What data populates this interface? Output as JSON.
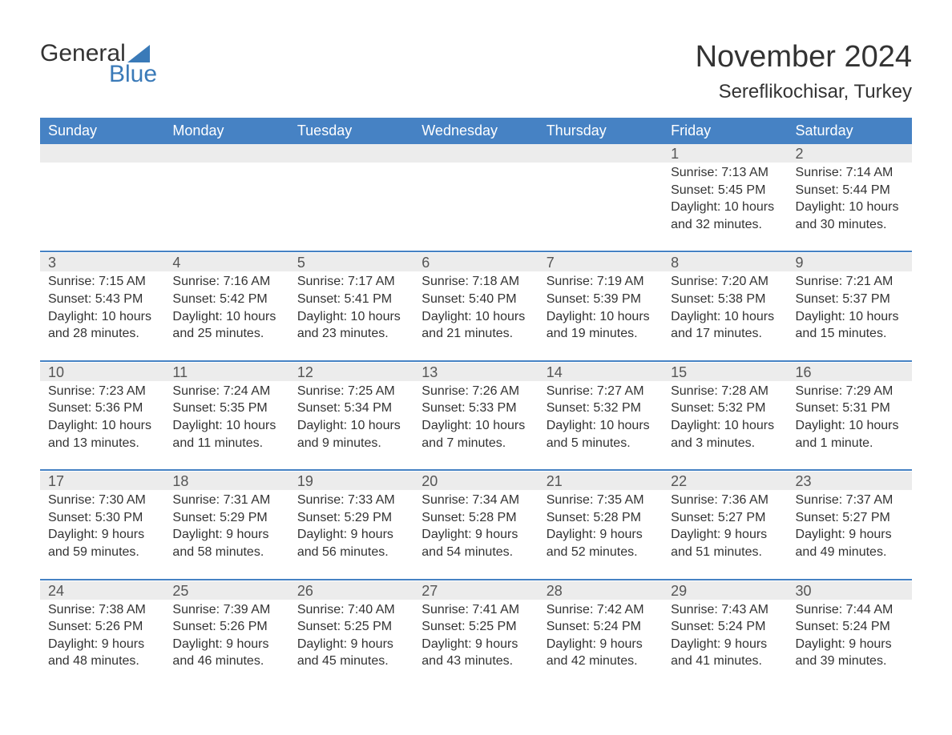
{
  "logo": {
    "word1": "General",
    "word2": "Blue",
    "accent_color": "#3a7ab8"
  },
  "title": "November 2024",
  "location": "Sereflikochisar, Turkey",
  "colors": {
    "header_bg": "#4682c4",
    "header_text": "#ffffff",
    "daynum_bg": "#ececec",
    "week_border": "#4682c4",
    "text": "#333333"
  },
  "day_headers": [
    "Sunday",
    "Monday",
    "Tuesday",
    "Wednesday",
    "Thursday",
    "Friday",
    "Saturday"
  ],
  "weeks": [
    [
      null,
      null,
      null,
      null,
      null,
      {
        "day": "1",
        "sunrise": "Sunrise: 7:13 AM",
        "sunset": "Sunset: 5:45 PM",
        "daylight1": "Daylight: 10 hours",
        "daylight2": "and 32 minutes."
      },
      {
        "day": "2",
        "sunrise": "Sunrise: 7:14 AM",
        "sunset": "Sunset: 5:44 PM",
        "daylight1": "Daylight: 10 hours",
        "daylight2": "and 30 minutes."
      }
    ],
    [
      {
        "day": "3",
        "sunrise": "Sunrise: 7:15 AM",
        "sunset": "Sunset: 5:43 PM",
        "daylight1": "Daylight: 10 hours",
        "daylight2": "and 28 minutes."
      },
      {
        "day": "4",
        "sunrise": "Sunrise: 7:16 AM",
        "sunset": "Sunset: 5:42 PM",
        "daylight1": "Daylight: 10 hours",
        "daylight2": "and 25 minutes."
      },
      {
        "day": "5",
        "sunrise": "Sunrise: 7:17 AM",
        "sunset": "Sunset: 5:41 PM",
        "daylight1": "Daylight: 10 hours",
        "daylight2": "and 23 minutes."
      },
      {
        "day": "6",
        "sunrise": "Sunrise: 7:18 AM",
        "sunset": "Sunset: 5:40 PM",
        "daylight1": "Daylight: 10 hours",
        "daylight2": "and 21 minutes."
      },
      {
        "day": "7",
        "sunrise": "Sunrise: 7:19 AM",
        "sunset": "Sunset: 5:39 PM",
        "daylight1": "Daylight: 10 hours",
        "daylight2": "and 19 minutes."
      },
      {
        "day": "8",
        "sunrise": "Sunrise: 7:20 AM",
        "sunset": "Sunset: 5:38 PM",
        "daylight1": "Daylight: 10 hours",
        "daylight2": "and 17 minutes."
      },
      {
        "day": "9",
        "sunrise": "Sunrise: 7:21 AM",
        "sunset": "Sunset: 5:37 PM",
        "daylight1": "Daylight: 10 hours",
        "daylight2": "and 15 minutes."
      }
    ],
    [
      {
        "day": "10",
        "sunrise": "Sunrise: 7:23 AM",
        "sunset": "Sunset: 5:36 PM",
        "daylight1": "Daylight: 10 hours",
        "daylight2": "and 13 minutes."
      },
      {
        "day": "11",
        "sunrise": "Sunrise: 7:24 AM",
        "sunset": "Sunset: 5:35 PM",
        "daylight1": "Daylight: 10 hours",
        "daylight2": "and 11 minutes."
      },
      {
        "day": "12",
        "sunrise": "Sunrise: 7:25 AM",
        "sunset": "Sunset: 5:34 PM",
        "daylight1": "Daylight: 10 hours",
        "daylight2": "and 9 minutes."
      },
      {
        "day": "13",
        "sunrise": "Sunrise: 7:26 AM",
        "sunset": "Sunset: 5:33 PM",
        "daylight1": "Daylight: 10 hours",
        "daylight2": "and 7 minutes."
      },
      {
        "day": "14",
        "sunrise": "Sunrise: 7:27 AM",
        "sunset": "Sunset: 5:32 PM",
        "daylight1": "Daylight: 10 hours",
        "daylight2": "and 5 minutes."
      },
      {
        "day": "15",
        "sunrise": "Sunrise: 7:28 AM",
        "sunset": "Sunset: 5:32 PM",
        "daylight1": "Daylight: 10 hours",
        "daylight2": "and 3 minutes."
      },
      {
        "day": "16",
        "sunrise": "Sunrise: 7:29 AM",
        "sunset": "Sunset: 5:31 PM",
        "daylight1": "Daylight: 10 hours",
        "daylight2": "and 1 minute."
      }
    ],
    [
      {
        "day": "17",
        "sunrise": "Sunrise: 7:30 AM",
        "sunset": "Sunset: 5:30 PM",
        "daylight1": "Daylight: 9 hours",
        "daylight2": "and 59 minutes."
      },
      {
        "day": "18",
        "sunrise": "Sunrise: 7:31 AM",
        "sunset": "Sunset: 5:29 PM",
        "daylight1": "Daylight: 9 hours",
        "daylight2": "and 58 minutes."
      },
      {
        "day": "19",
        "sunrise": "Sunrise: 7:33 AM",
        "sunset": "Sunset: 5:29 PM",
        "daylight1": "Daylight: 9 hours",
        "daylight2": "and 56 minutes."
      },
      {
        "day": "20",
        "sunrise": "Sunrise: 7:34 AM",
        "sunset": "Sunset: 5:28 PM",
        "daylight1": "Daylight: 9 hours",
        "daylight2": "and 54 minutes."
      },
      {
        "day": "21",
        "sunrise": "Sunrise: 7:35 AM",
        "sunset": "Sunset: 5:28 PM",
        "daylight1": "Daylight: 9 hours",
        "daylight2": "and 52 minutes."
      },
      {
        "day": "22",
        "sunrise": "Sunrise: 7:36 AM",
        "sunset": "Sunset: 5:27 PM",
        "daylight1": "Daylight: 9 hours",
        "daylight2": "and 51 minutes."
      },
      {
        "day": "23",
        "sunrise": "Sunrise: 7:37 AM",
        "sunset": "Sunset: 5:27 PM",
        "daylight1": "Daylight: 9 hours",
        "daylight2": "and 49 minutes."
      }
    ],
    [
      {
        "day": "24",
        "sunrise": "Sunrise: 7:38 AM",
        "sunset": "Sunset: 5:26 PM",
        "daylight1": "Daylight: 9 hours",
        "daylight2": "and 48 minutes."
      },
      {
        "day": "25",
        "sunrise": "Sunrise: 7:39 AM",
        "sunset": "Sunset: 5:26 PM",
        "daylight1": "Daylight: 9 hours",
        "daylight2": "and 46 minutes."
      },
      {
        "day": "26",
        "sunrise": "Sunrise: 7:40 AM",
        "sunset": "Sunset: 5:25 PM",
        "daylight1": "Daylight: 9 hours",
        "daylight2": "and 45 minutes."
      },
      {
        "day": "27",
        "sunrise": "Sunrise: 7:41 AM",
        "sunset": "Sunset: 5:25 PM",
        "daylight1": "Daylight: 9 hours",
        "daylight2": "and 43 minutes."
      },
      {
        "day": "28",
        "sunrise": "Sunrise: 7:42 AM",
        "sunset": "Sunset: 5:24 PM",
        "daylight1": "Daylight: 9 hours",
        "daylight2": "and 42 minutes."
      },
      {
        "day": "29",
        "sunrise": "Sunrise: 7:43 AM",
        "sunset": "Sunset: 5:24 PM",
        "daylight1": "Daylight: 9 hours",
        "daylight2": "and 41 minutes."
      },
      {
        "day": "30",
        "sunrise": "Sunrise: 7:44 AM",
        "sunset": "Sunset: 5:24 PM",
        "daylight1": "Daylight: 9 hours",
        "daylight2": "and 39 minutes."
      }
    ]
  ]
}
